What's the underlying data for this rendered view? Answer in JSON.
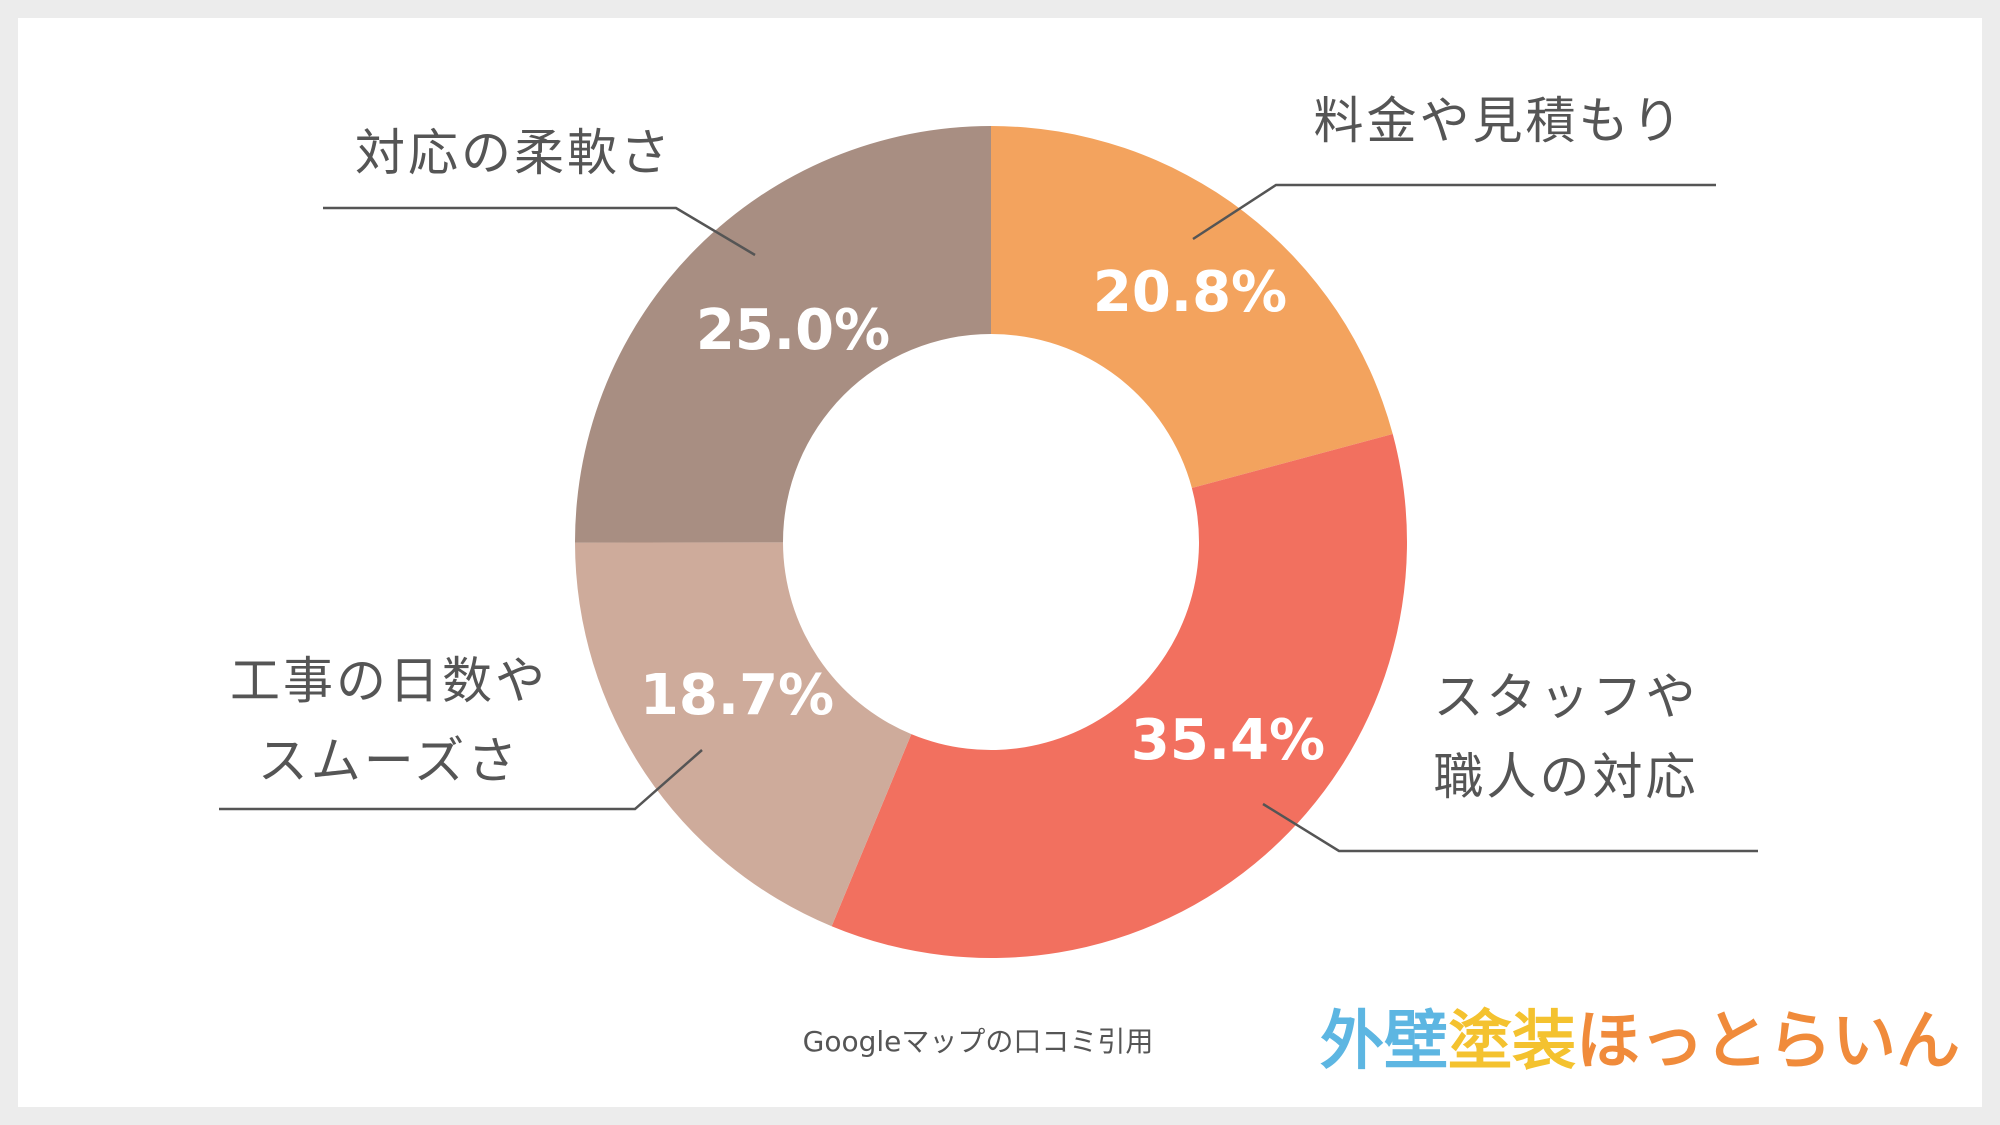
{
  "chart_data": {
    "type": "donut",
    "categories": [
      "料金や見積もり",
      "スタッフや\n職人の対応",
      "工事の日数や\nスムーズさ",
      "対応の柔軟さ"
    ],
    "values": [
      20.8,
      35.4,
      18.7,
      25.0
    ],
    "value_labels": [
      "20.8%",
      "35.4%",
      "18.7%",
      "25.0%"
    ],
    "colors": [
      "#F3A35E",
      "#F2705F",
      "#CEAB9B",
      "#A88E82"
    ],
    "source": "Googleマップの口コミ引用"
  },
  "logo": [
    {
      "text": "外壁",
      "color": "#5DB6E2"
    },
    {
      "text": "塗装",
      "color": "#F4C22F"
    },
    {
      "text": "ほっとらいん",
      "color": "#F08B3B"
    }
  ]
}
